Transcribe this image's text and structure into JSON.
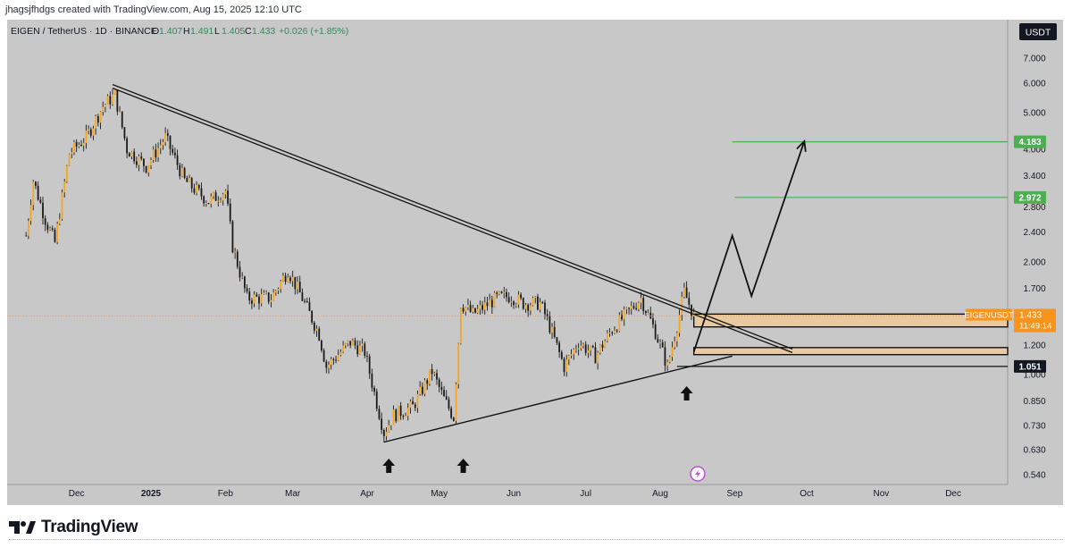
{
  "attribution": "jhagsjfhdgs created with TradingView.com, Aug 15, 2025 12:10 UTC",
  "symbol": {
    "name": "EIGEN / TetherUS · 1D · BINANCE",
    "ohlc": [
      {
        "label": "O",
        "value": "1.407"
      },
      {
        "label": "H",
        "value": "1.491"
      },
      {
        "label": "L",
        "value": "1.405"
      },
      {
        "label": "C",
        "value": "1.433"
      }
    ],
    "change": "+0.026 (+1.85%)"
  },
  "currency_button": "USDT",
  "price_labels": {
    "current_ticker": "EIGENUSDT",
    "current_price": "1.433",
    "countdown": "11:49:14",
    "target_1": "4.183",
    "target_2": "2.972",
    "support": "1.051"
  },
  "colors": {
    "background": "#c8c8c8",
    "candle": "#f5a623",
    "wick": "#1a1a1a",
    "target_line": "#4caf50",
    "zone_fill": "#e8c9a0",
    "price_tag": "#f7941d"
  },
  "icons": [
    "arrow-up-icon",
    "lightning-icon",
    "tradingview-logo-icon"
  ],
  "chart_data": {
    "type": "candlestick",
    "title": "EIGEN / TetherUS · 1D · BINANCE",
    "y_scale": "log",
    "ylim": [
      0.5,
      8.0
    ],
    "y_ticks": [
      "7.000",
      "6.000",
      "5.000",
      "4.000",
      "3.400",
      "2.800",
      "2.400",
      "2.000",
      "1.700",
      "1.400",
      "1.200",
      "1.000",
      "0.850",
      "0.730",
      "0.630",
      "0.540"
    ],
    "x_ticks": [
      "Dec",
      "2025",
      "Feb",
      "Mar",
      "Apr",
      "May",
      "Jun",
      "Jul",
      "Aug",
      "Sep",
      "Oct",
      "Nov",
      "Dec"
    ],
    "price_path": [
      {
        "date": "2024-11-10",
        "price": 2.35
      },
      {
        "date": "2024-11-13",
        "price": 3.3
      },
      {
        "date": "2024-11-18",
        "price": 2.6
      },
      {
        "date": "2024-11-22",
        "price": 2.25
      },
      {
        "date": "2024-11-28",
        "price": 3.9
      },
      {
        "date": "2024-12-05",
        "price": 4.3
      },
      {
        "date": "2024-12-12",
        "price": 5.2
      },
      {
        "date": "2024-12-17",
        "price": 5.6
      },
      {
        "date": "2024-12-22",
        "price": 4.0
      },
      {
        "date": "2024-12-30",
        "price": 3.6
      },
      {
        "date": "2025-01-07",
        "price": 4.3
      },
      {
        "date": "2025-01-15",
        "price": 3.3
      },
      {
        "date": "2025-01-25",
        "price": 2.9
      },
      {
        "date": "2025-02-01",
        "price": 3.1
      },
      {
        "date": "2025-02-04",
        "price": 2.2
      },
      {
        "date": "2025-02-10",
        "price": 1.6
      },
      {
        "date": "2025-02-20",
        "price": 1.6
      },
      {
        "date": "2025-02-27",
        "price": 1.9
      },
      {
        "date": "2025-03-05",
        "price": 1.6
      },
      {
        "date": "2025-03-12",
        "price": 1.28
      },
      {
        "date": "2025-03-15",
        "price": 1.05
      },
      {
        "date": "2025-03-25",
        "price": 1.22
      },
      {
        "date": "2025-03-31",
        "price": 1.15
      },
      {
        "date": "2025-04-03",
        "price": 0.95
      },
      {
        "date": "2025-04-08",
        "price": 0.7
      },
      {
        "date": "2025-04-12",
        "price": 0.78
      },
      {
        "date": "2025-04-20",
        "price": 0.82
      },
      {
        "date": "2025-04-28",
        "price": 1.02
      },
      {
        "date": "2025-05-03",
        "price": 0.86
      },
      {
        "date": "2025-05-07",
        "price": 0.77
      },
      {
        "date": "2025-05-10",
        "price": 1.55
      },
      {
        "date": "2025-05-15",
        "price": 1.45
      },
      {
        "date": "2025-05-25",
        "price": 1.6
      },
      {
        "date": "2025-05-31",
        "price": 1.62
      },
      {
        "date": "2025-06-05",
        "price": 1.55
      },
      {
        "date": "2025-06-12",
        "price": 1.55
      },
      {
        "date": "2025-06-15",
        "price": 1.4
      },
      {
        "date": "2025-06-22",
        "price": 1.05
      },
      {
        "date": "2025-06-28",
        "price": 1.22
      },
      {
        "date": "2025-07-05",
        "price": 1.12
      },
      {
        "date": "2025-07-12",
        "price": 1.32
      },
      {
        "date": "2025-07-20",
        "price": 1.5
      },
      {
        "date": "2025-07-24",
        "price": 1.6
      },
      {
        "date": "2025-07-30",
        "price": 1.3
      },
      {
        "date": "2025-08-04",
        "price": 1.05
      },
      {
        "date": "2025-08-08",
        "price": 1.35
      },
      {
        "date": "2025-08-11",
        "price": 1.66
      },
      {
        "date": "2025-08-15",
        "price": 1.433
      }
    ],
    "annotations": {
      "descending_trendline": [
        {
          "date": "2024-12-16",
          "price": 5.95
        },
        {
          "date": "2025-09-25",
          "price": 1.17
        }
      ],
      "ascending_trendline": [
        {
          "date": "2025-04-08",
          "price": 0.66
        },
        {
          "date": "2025-08-31",
          "price": 1.12
        }
      ],
      "projected_path": [
        {
          "date": "2025-08-15",
          "price": 1.15
        },
        {
          "date": "2025-08-31",
          "price": 2.35
        },
        {
          "date": "2025-09-08",
          "price": 1.62
        },
        {
          "date": "2025-09-30",
          "price": 4.2
        }
      ],
      "target_lines": [
        {
          "price": 4.183,
          "from": "2025-08-31"
        },
        {
          "price": 2.972,
          "from": "2025-09-01"
        }
      ],
      "zones": [
        {
          "low": 1.34,
          "high": 1.45,
          "from": "2025-08-15"
        },
        {
          "low": 1.13,
          "high": 1.18,
          "from": "2025-08-15"
        }
      ],
      "support_line": {
        "price": 1.051,
        "from": "2025-08-08"
      },
      "up_arrows": [
        {
          "date": "2025-04-10",
          "label": "arrow-up-icon"
        },
        {
          "date": "2025-05-11",
          "label": "arrow-up-icon"
        },
        {
          "date": "2025-08-12",
          "label": "arrow-up-icon"
        }
      ]
    }
  }
}
